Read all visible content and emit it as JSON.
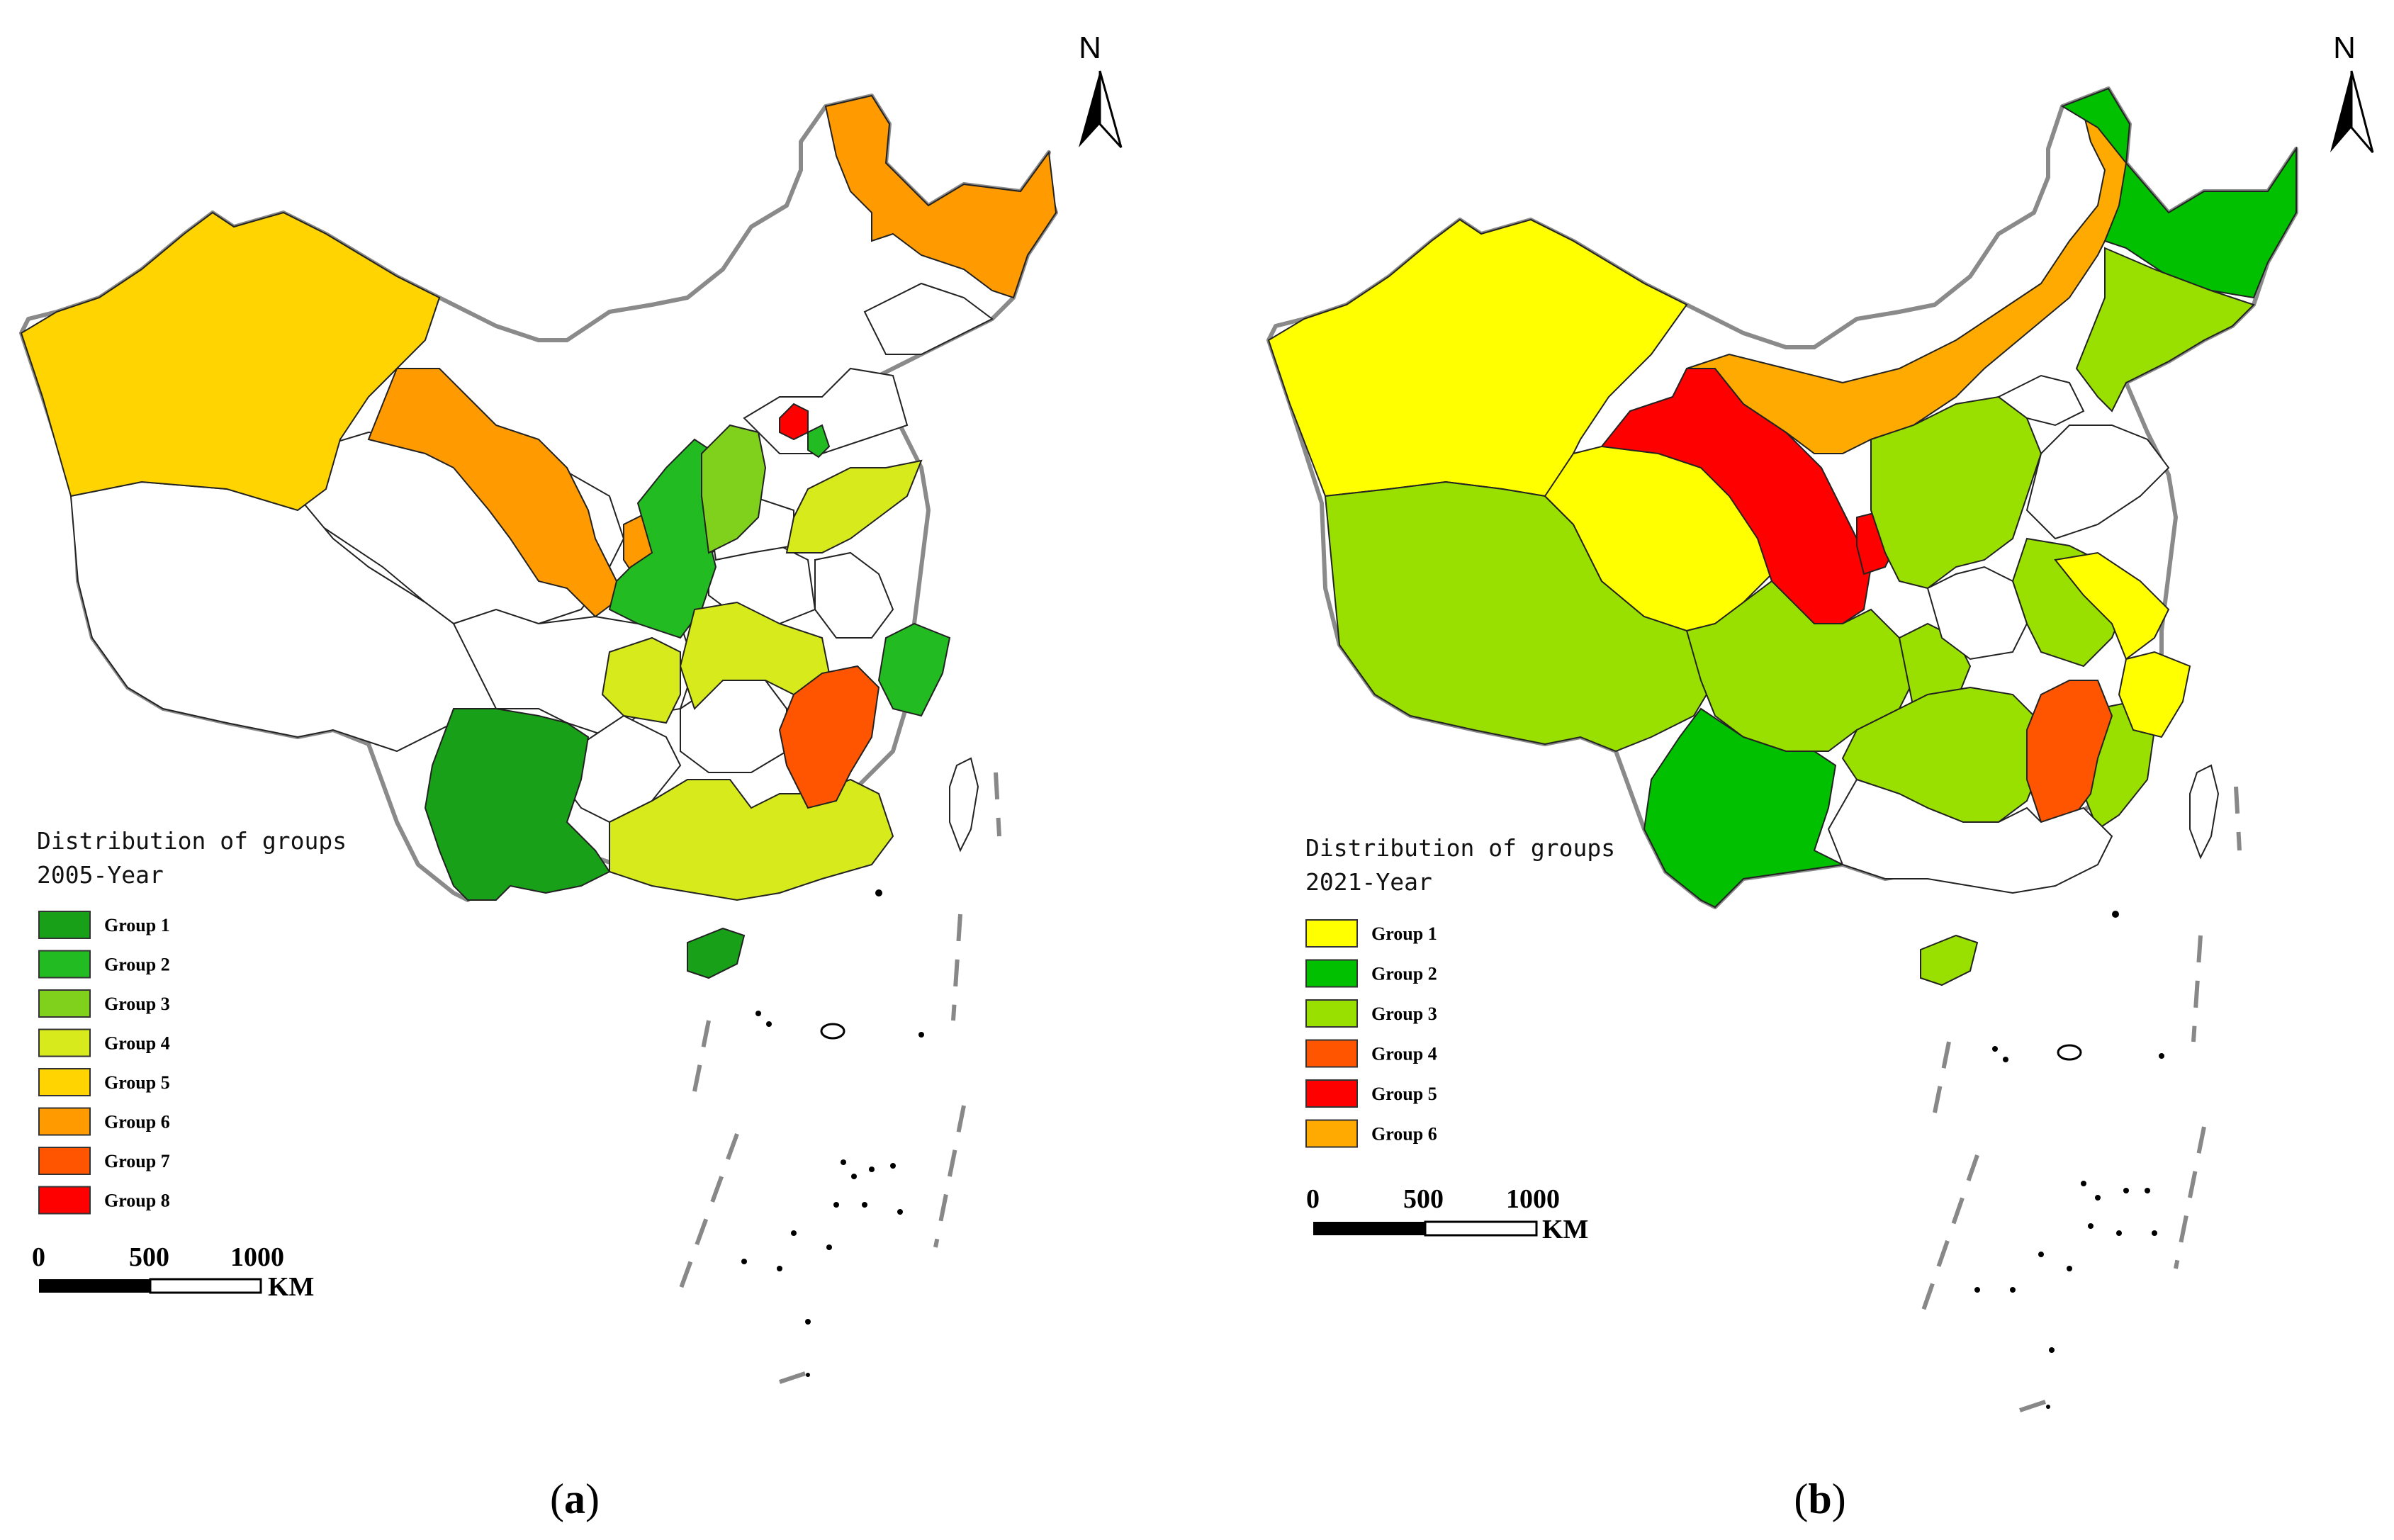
{
  "panels": [
    {
      "id": "a",
      "caption_open": "(",
      "caption_letter": "a",
      "caption_close": ")",
      "legend_title_line1": "Distribution of groups",
      "legend_title_line2": "2005-Year",
      "groups": [
        {
          "label": "Group 1",
          "color": "#18a018"
        },
        {
          "label": "Group 2",
          "color": "#22bb22"
        },
        {
          "label": "Group 3",
          "color": "#7fd11c"
        },
        {
          "label": "Group 4",
          "color": "#d7ea1c"
        },
        {
          "label": "Group 5",
          "color": "#ffd400"
        },
        {
          "label": "Group 6",
          "color": "#ff9a00"
        },
        {
          "label": "Group 7",
          "color": "#ff5500"
        },
        {
          "label": "Group 8",
          "color": "#ff0000"
        }
      ],
      "scale": {
        "ticks": [
          "0",
          "500",
          "1000"
        ],
        "unit": "KM"
      },
      "north": "N"
    },
    {
      "id": "b",
      "caption_open": "(",
      "caption_letter": "b",
      "caption_close": ")",
      "legend_title_line1": "Distribution of groups",
      "legend_title_line2": "2021-Year",
      "groups": [
        {
          "label": "Group 1",
          "color": "#ffff00"
        },
        {
          "label": "Group 2",
          "color": "#00c000"
        },
        {
          "label": "Group 3",
          "color": "#99e000"
        },
        {
          "label": "Group 4",
          "color": "#ff5500"
        },
        {
          "label": "Group 5",
          "color": "#ff0000"
        },
        {
          "label": "Group 6",
          "color": "#ffaa00"
        }
      ],
      "scale": {
        "ticks": [
          "0",
          "500",
          "1000"
        ],
        "unit": "KM"
      },
      "north": "N"
    }
  ]
}
